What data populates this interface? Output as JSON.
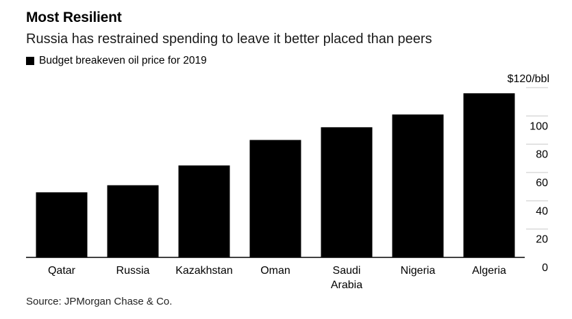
{
  "title": "Most Resilient",
  "subtitle": "Russia has restrained spending to leave it better placed than peers",
  "legend_label": "Budget breakeven oil price for 2019",
  "source": "Source: JPMorgan Chase & Co.",
  "colors": {
    "bar": "#000000",
    "grid": "#c8c8c8",
    "axis": "#000000"
  },
  "chart_data": {
    "type": "bar",
    "categories": [
      "Qatar",
      "Russia",
      "Kazakhstan",
      "Oman",
      "Saudi Arabia",
      "Nigeria",
      "Algeria"
    ],
    "category_lines": [
      [
        "Qatar"
      ],
      [
        "Russia"
      ],
      [
        "Kazakhstan"
      ],
      [
        "Oman"
      ],
      [
        "Saudi",
        "Arabia"
      ],
      [
        "Nigeria"
      ],
      [
        "Algeria"
      ]
    ],
    "series": [
      {
        "name": "Budget breakeven oil price for 2019",
        "values": [
          46,
          51,
          65,
          83,
          92,
          101,
          116
        ]
      }
    ],
    "ylim": [
      0,
      120
    ],
    "yticks": [
      {
        "value": 0,
        "label": "0"
      },
      {
        "value": 20,
        "label": "20"
      },
      {
        "value": 40,
        "label": "40"
      },
      {
        "value": 60,
        "label": "60"
      },
      {
        "value": 80,
        "label": "80"
      },
      {
        "value": 100,
        "label": "100"
      },
      {
        "value": 120,
        "label": "$120/bbl"
      }
    ],
    "yaxis_position": "right",
    "grid": true,
    "legend": "top-left"
  }
}
